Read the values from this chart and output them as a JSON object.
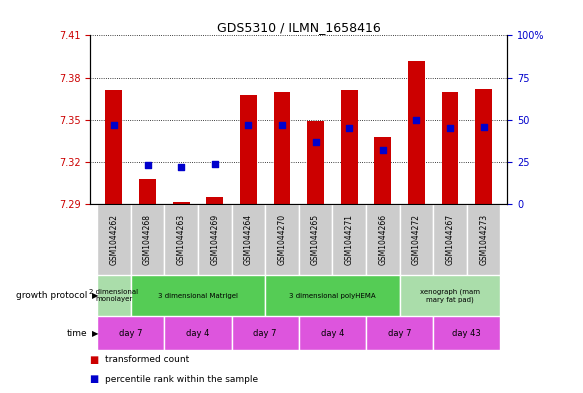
{
  "title": "GDS5310 / ILMN_1658416",
  "samples": [
    "GSM1044262",
    "GSM1044268",
    "GSM1044263",
    "GSM1044269",
    "GSM1044264",
    "GSM1044270",
    "GSM1044265",
    "GSM1044271",
    "GSM1044266",
    "GSM1044272",
    "GSM1044267",
    "GSM1044273"
  ],
  "red_values": [
    7.371,
    7.308,
    7.292,
    7.295,
    7.368,
    7.37,
    7.349,
    7.371,
    7.338,
    7.392,
    7.37,
    7.372
  ],
  "blue_values": [
    47,
    23,
    22,
    24,
    47,
    47,
    37,
    45,
    32,
    50,
    45,
    46
  ],
  "ylim_left": [
    7.29,
    7.41
  ],
  "ylim_right": [
    0,
    100
  ],
  "yticks_left": [
    7.29,
    7.32,
    7.35,
    7.38,
    7.41
  ],
  "yticks_right": [
    0,
    25,
    50,
    75,
    100
  ],
  "bar_bottom": 7.29,
  "bar_color": "#cc0000",
  "dot_color": "#0000cc",
  "sample_bg": "#cccccc",
  "growth_protocol_groups": [
    {
      "label": "2 dimensional\nmonolayer",
      "start": 0,
      "end": 2,
      "color": "#aaddaa"
    },
    {
      "label": "3 dimensional Matrigel",
      "start": 2,
      "end": 10,
      "color": "#55cc55"
    },
    {
      "label": "3 dimensional polyHEMA",
      "start": 10,
      "end": 18,
      "color": "#55cc55"
    },
    {
      "label": "xenograph (mam\nmary fat pad)",
      "start": 18,
      "end": 24,
      "color": "#aaddaa"
    }
  ],
  "time_groups": [
    {
      "label": "day 7",
      "start": 0,
      "end": 4,
      "color": "#dd55dd"
    },
    {
      "label": "day 4",
      "start": 4,
      "end": 8,
      "color": "#dd55dd"
    },
    {
      "label": "day 7",
      "start": 8,
      "end": 12,
      "color": "#dd55dd"
    },
    {
      "label": "day 4",
      "start": 12,
      "end": 16,
      "color": "#dd55dd"
    },
    {
      "label": "day 7",
      "start": 16,
      "end": 20,
      "color": "#dd55dd"
    },
    {
      "label": "day 43",
      "start": 20,
      "end": 24,
      "color": "#dd55dd"
    }
  ],
  "left_label_color": "#cc0000",
  "right_label_color": "#0000cc",
  "legend_items": [
    {
      "color": "#cc0000",
      "label": "transformed count"
    },
    {
      "color": "#0000cc",
      "label": "percentile rank within the sample"
    }
  ]
}
